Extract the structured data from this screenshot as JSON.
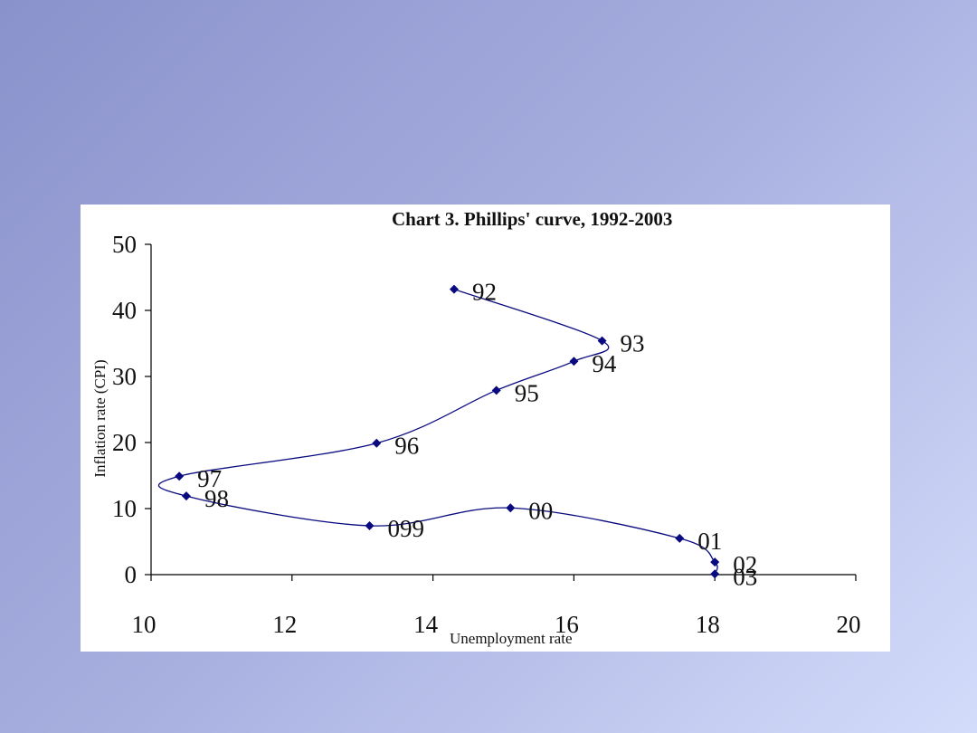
{
  "colors": {
    "series": "#0a0a80",
    "axis": "#000000"
  },
  "chart_data": {
    "type": "line",
    "title": "Chart 3. Phillips'  curve, 1992-2003",
    "xlabel": "Unemployment rate",
    "ylabel": "Inflation rate (CPI)",
    "xlim": [
      10,
      20
    ],
    "ylim": [
      0,
      50
    ],
    "x_ticks": [
      10,
      12,
      14,
      16,
      18,
      20
    ],
    "y_ticks": [
      0,
      10,
      20,
      30,
      40,
      50
    ],
    "grid": false,
    "series": [
      {
        "name": "Phillips curve 1992-2003",
        "points": [
          {
            "label": "92",
            "x": 14.3,
            "y": 43.2
          },
          {
            "label": "93",
            "x": 16.4,
            "y": 35.4
          },
          {
            "label": "94",
            "x": 16.0,
            "y": 32.3
          },
          {
            "label": "95",
            "x": 14.9,
            "y": 27.9
          },
          {
            "label": "96",
            "x": 13.2,
            "y": 19.9
          },
          {
            "label": "97",
            "x": 10.4,
            "y": 14.9
          },
          {
            "label": "98",
            "x": 10.5,
            "y": 11.9
          },
          {
            "label": "099",
            "x": 13.1,
            "y": 7.4
          },
          {
            "label": "00",
            "x": 15.1,
            "y": 10.1
          },
          {
            "label": "01",
            "x": 17.5,
            "y": 5.5
          },
          {
            "label": "02",
            "x": 18.0,
            "y": 1.9
          },
          {
            "label": "03",
            "x": 18.0,
            "y": 0.1
          }
        ]
      }
    ]
  }
}
